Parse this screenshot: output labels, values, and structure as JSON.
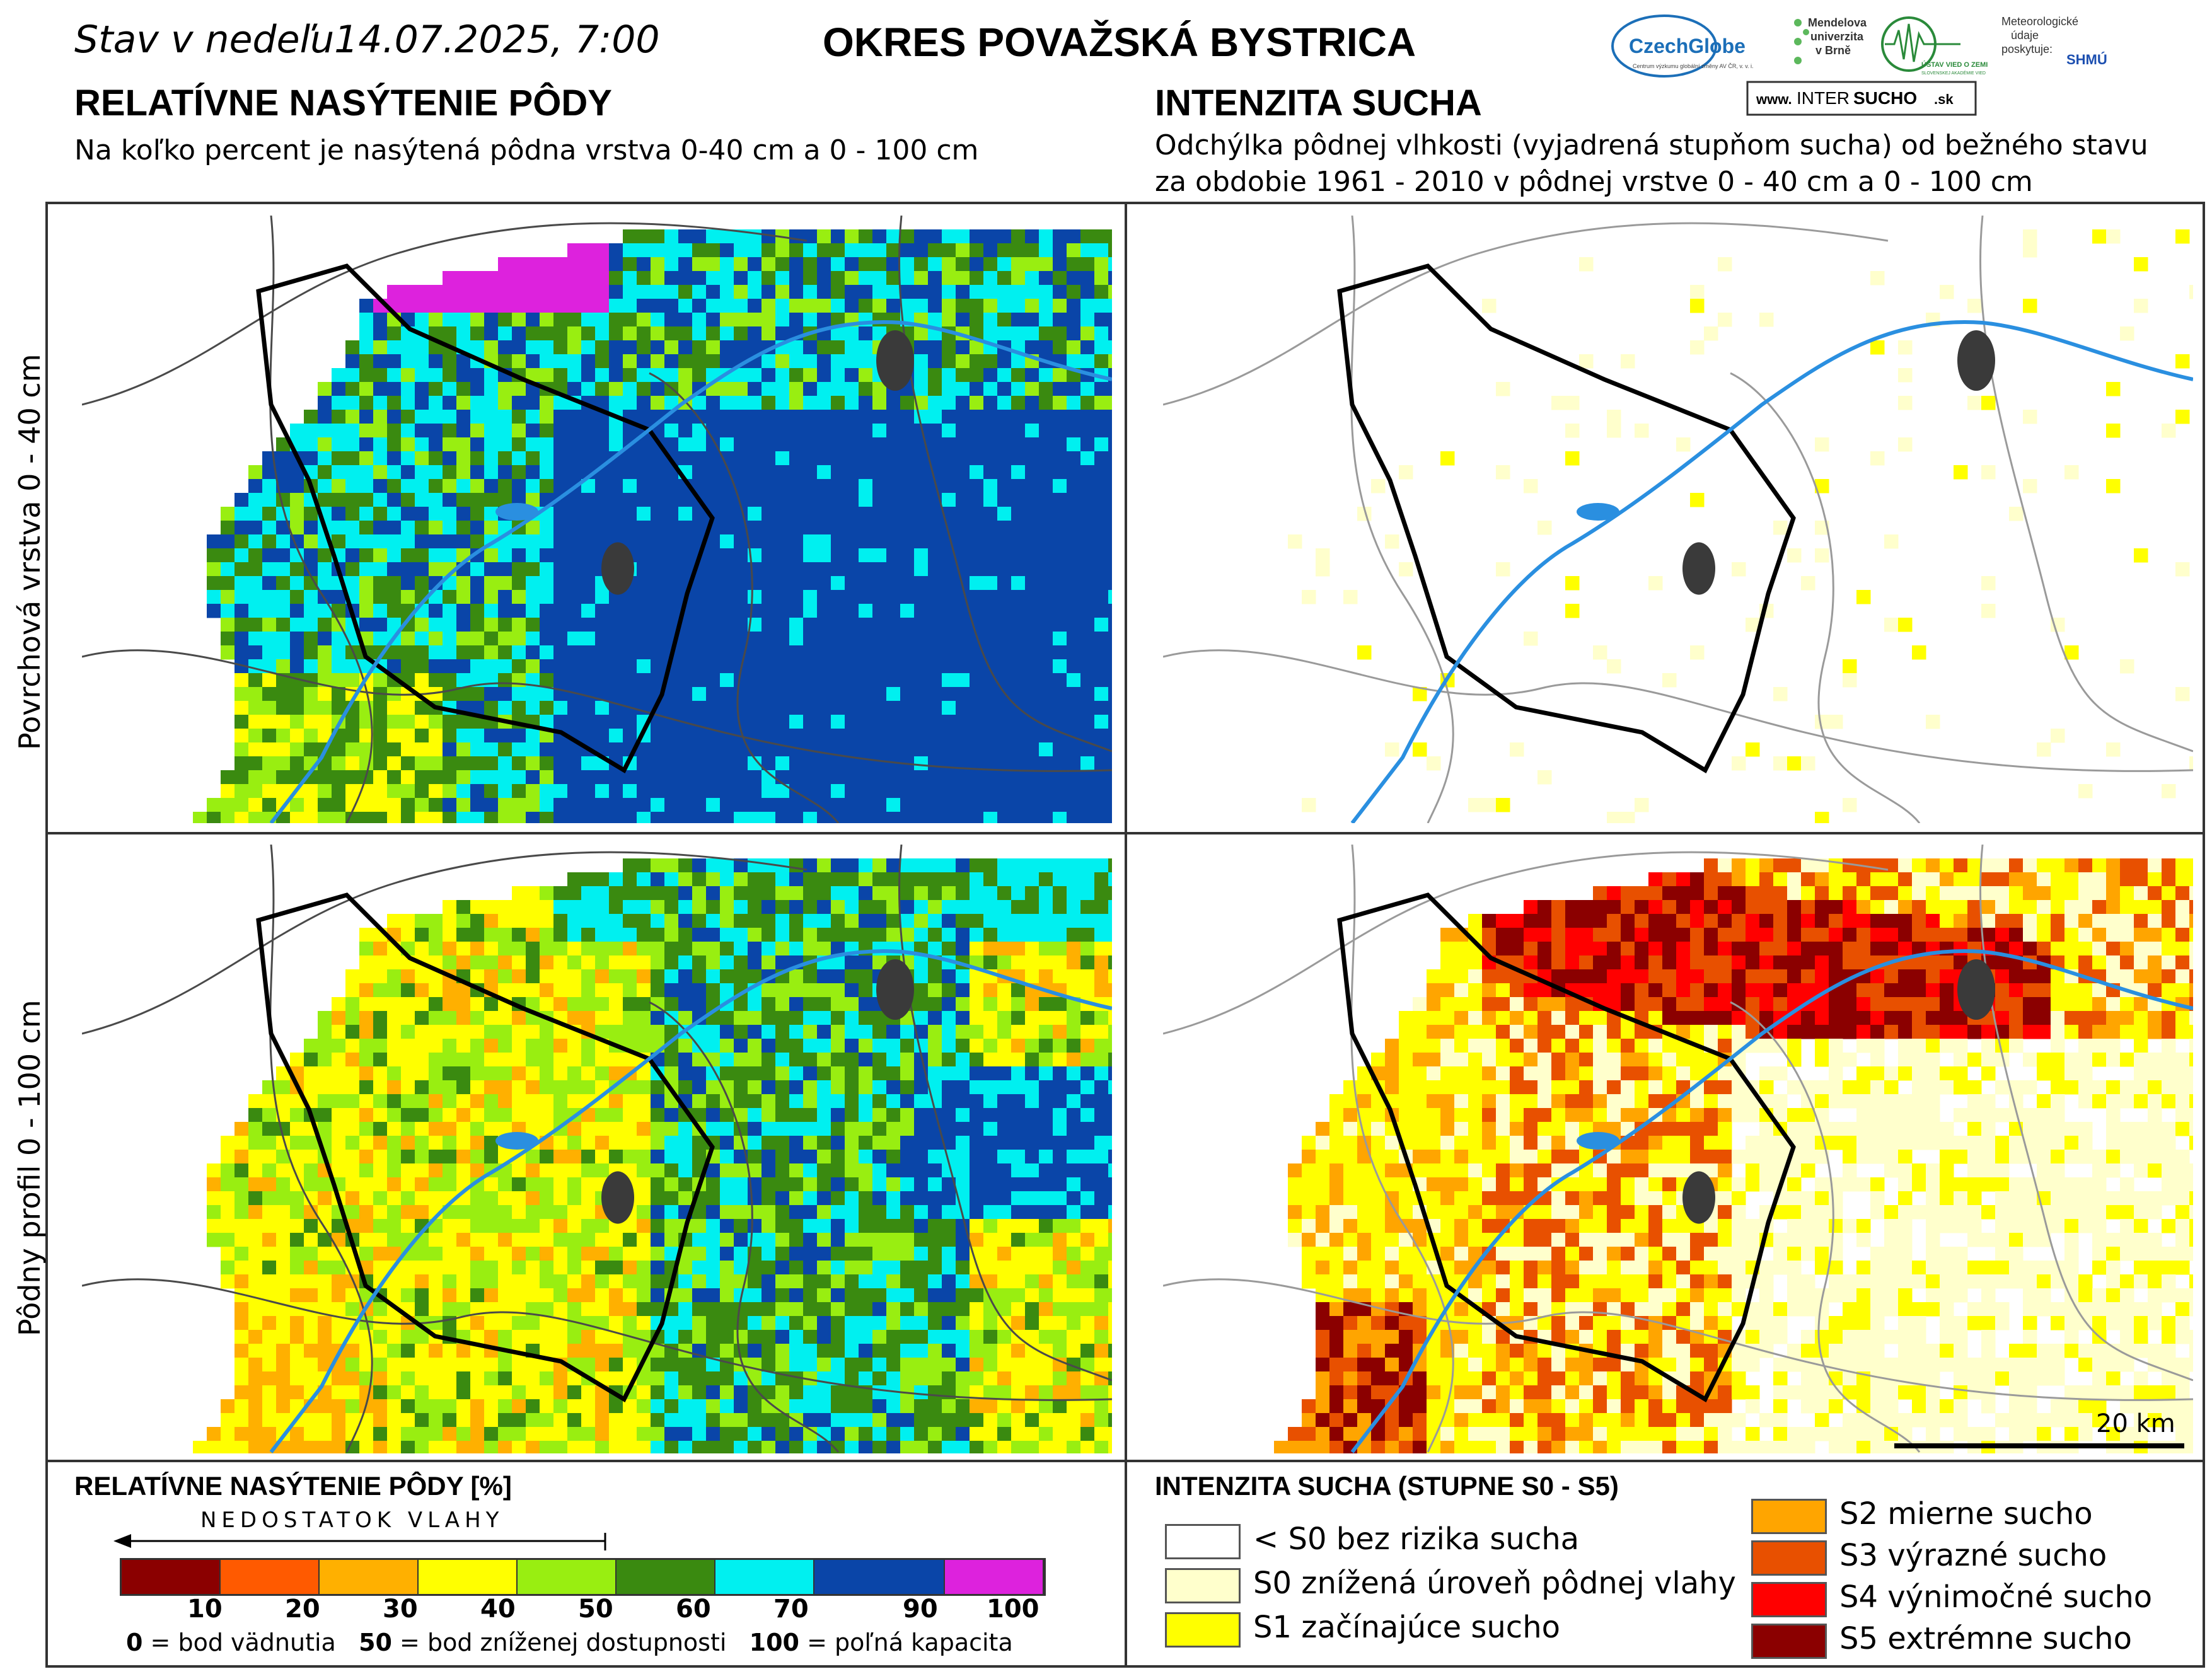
{
  "header": {
    "date_line": "Stav v nedeľu14.07.2025, 7:00",
    "district": "OKRES  POVAŽSKÁ BYSTRICA"
  },
  "left": {
    "title": "RELATÍVNE NASÝTENIE PÔDY",
    "subtitle": "Na koľko percent je nasýtená pôdna vrstva 0-40 cm a 0 - 100 cm"
  },
  "right": {
    "title": "INTENZITA SUCHA",
    "subtitle_line1": "Odchýlka pôdnej vlhkosti (vyjadrená stupňom sucha) od bežného stavu",
    "subtitle_line2": "za obdobie 1961 - 2010 v pôdnej vrstve 0 - 40 cm a 0 - 100 cm"
  },
  "logos": {
    "czechglobe": "CzechGlobe",
    "czechglobe_small": "Centrum výzkumu globální změny AV ČR, v. v. i.",
    "mendel_line1": "Mendelova",
    "mendel_line2": "univerzita",
    "mendel_line3": "v Brně",
    "ustav": "ÚSTAV VIED O ZEMI",
    "ustav_small": "SLOVENSKEJ AKADÉMIE VIED",
    "meteo_line1": "Meteorologické",
    "meteo_line2": "údaje",
    "meteo_line3": "poskytuje:",
    "shmu": "SHMÚ",
    "intersucho_prefix": "www.",
    "intersucho_a": "INTER",
    "intersucho_b": "SUCHO",
    "intersucho_c": ".sk"
  },
  "rows": {
    "top": "Povrchová vrstva 0 - 40 cm",
    "bottom": "Pôdny profil 0 - 100 cm"
  },
  "scale_bar": "20 km",
  "legend_left": {
    "title": "RELATÍVNE NASÝTENIE PÔDY [%]",
    "arrow_label": "NEDOSTATOK VLAHY",
    "colors": [
      "#8b0000",
      "#ff5a00",
      "#ffb000",
      "#ffff00",
      "#99ee11",
      "#3a8a10",
      "#00f0f0",
      "#0a45a8",
      "#dd22dd"
    ],
    "ticks": [
      "10",
      "20",
      "30",
      "40",
      "50",
      "60",
      "70",
      "90",
      "100"
    ],
    "note_0": "0",
    "note_0_text": " = bod vädnutia",
    "note_50": "50",
    "note_50_text": " = bod zníženej dostupnosti",
    "note_100": "100",
    "note_100_text": " = poľná kapacita"
  },
  "legend_right": {
    "title": "INTENZITA SUCHA (STUPNE S0 - S5)",
    "items": [
      {
        "label": "< S0 bez rizika sucha",
        "color": "#ffffff"
      },
      {
        "label": "S0 znížená úroveň pôdnej vlahy",
        "color": "#ffffcc"
      },
      {
        "label": "S1 začínajúce sucho",
        "color": "#ffff00"
      },
      {
        "label": "S2 mierne sucho",
        "color": "#ffa500"
      },
      {
        "label": "S3 výrazné sucho",
        "color": "#e85000"
      },
      {
        "label": "S4 výnimočné sucho",
        "color": "#ff0000"
      },
      {
        "label": "S5 extrémne sucho",
        "color": "#8b0000"
      }
    ]
  }
}
